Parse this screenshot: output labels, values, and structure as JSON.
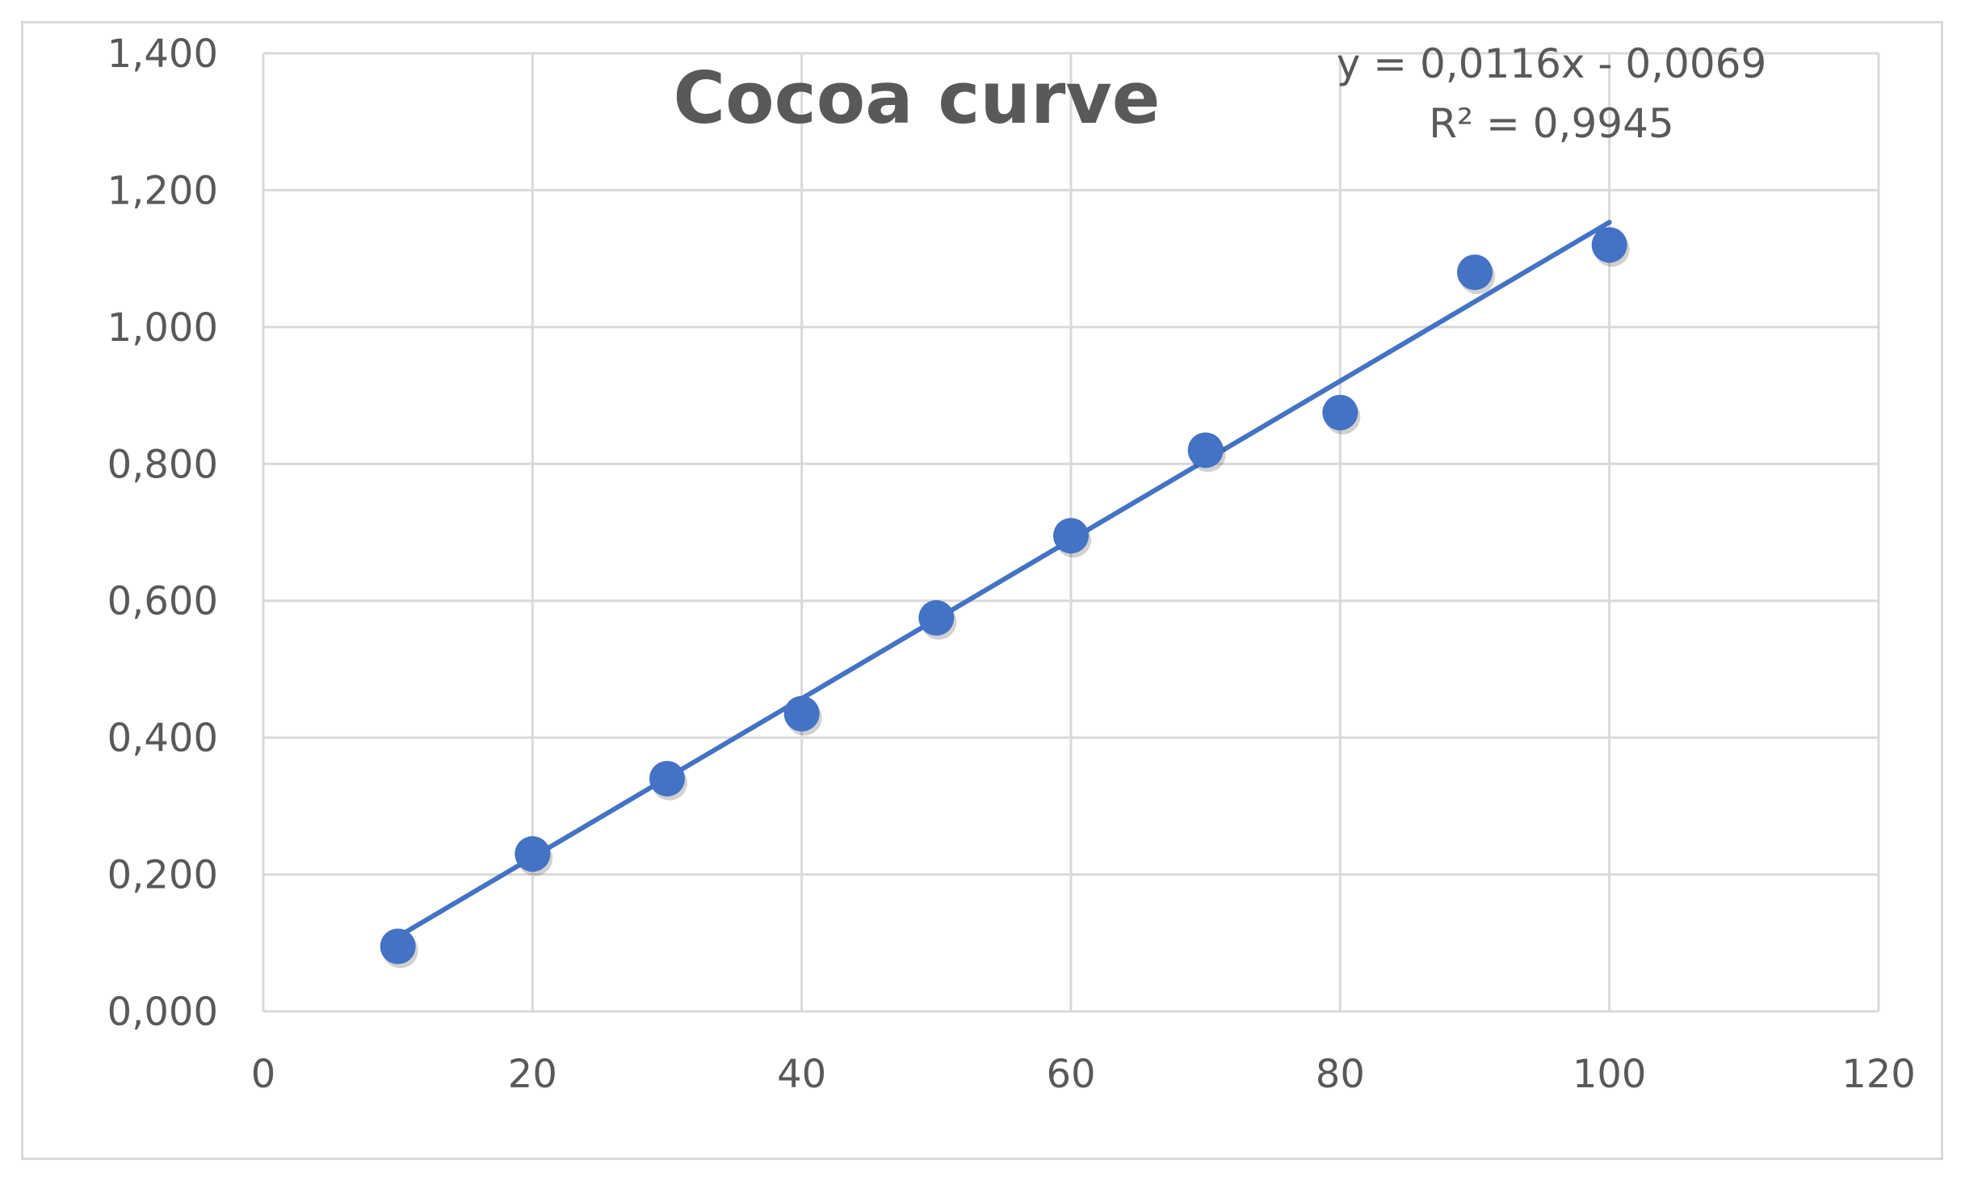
{
  "chart_data": {
    "type": "scatter",
    "title": "Cocoa curve",
    "xlabel": "",
    "ylabel": "",
    "xlim": [
      0,
      120
    ],
    "ylim": [
      0,
      1.4
    ],
    "xticks": [
      0,
      20,
      40,
      60,
      80,
      100,
      120
    ],
    "yticks": [
      0,
      0.2,
      0.4,
      0.6,
      0.8,
      1.0,
      1.2,
      1.4
    ],
    "xtick_labels": [
      "0",
      "20",
      "40",
      "60",
      "80",
      "100",
      "120"
    ],
    "ytick_labels": [
      "0,000",
      "0,200",
      "0,400",
      "0,600",
      "0,800",
      "1,000",
      "1,200",
      "1,400"
    ],
    "grid": true,
    "series": [
      {
        "x": [
          10,
          20,
          30,
          40,
          50,
          60,
          70,
          80,
          90,
          100
        ],
        "y": [
          0.095,
          0.23,
          0.34,
          0.435,
          0.575,
          0.695,
          0.82,
          0.875,
          1.08,
          1.12
        ]
      }
    ],
    "trendline": {
      "type": "linear",
      "slope": 0.0116,
      "intercept": -0.0069,
      "x_range": [
        10,
        100
      ],
      "equation": "y = 0,0116x - 0,0069",
      "r_squared": "R² = 0,9945"
    },
    "colors": {
      "marker": "#4472c4",
      "line": "#4472c4",
      "grid": "#d9d9d9",
      "text": "#595959"
    }
  }
}
